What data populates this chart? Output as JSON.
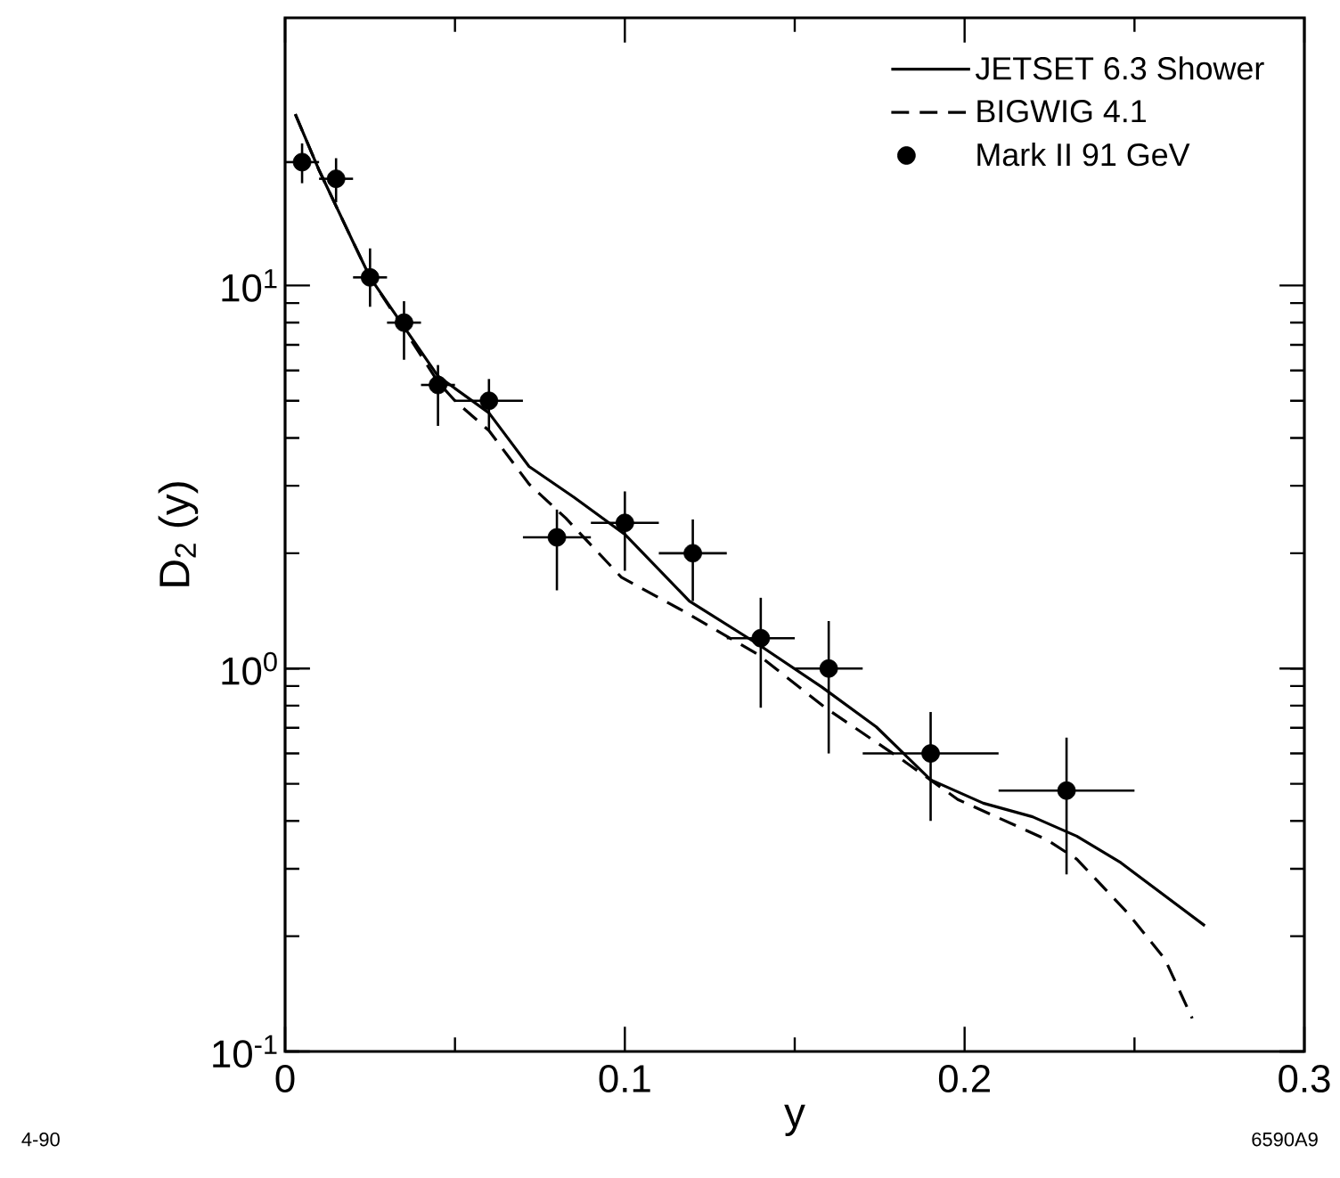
{
  "chart_data": {
    "type": "line",
    "xlabel": "y",
    "ylabel": "D$_{2}$ (y)",
    "log": "y",
    "xlim": [
      0,
      0.3
    ],
    "ylim": [
      0.1,
      50
    ],
    "xticks": [
      0,
      0.1,
      0.2,
      0.3
    ],
    "yticks": [
      {
        "value": 0.1,
        "label": "10$^{-1}$"
      },
      {
        "value": 1,
        "label": "10$^{0}$"
      },
      {
        "value": 10,
        "label": "10$^{1}$"
      }
    ],
    "grid": false,
    "legend": "top right",
    "annotations": [
      "4-90",
      "6590A9"
    ],
    "series": [
      {
        "name": "JETSET 6.3 Shower",
        "color": "#000000",
        "line_style": "solid",
        "marker": "none",
        "x": [
          0.003,
          0.01,
          0.02,
          0.025,
          0.035,
          0.045,
          0.06,
          0.0718,
          0.085,
          0.1,
          0.119,
          0.139,
          0.158,
          0.174,
          0.19,
          0.2055,
          0.22,
          0.233,
          0.246,
          0.2707
        ],
        "values": [
          28,
          20,
          13,
          10.5,
          7.8,
          5.8,
          4.65,
          3.37,
          2.8,
          2.24,
          1.5,
          1.16,
          0.894,
          0.704,
          0.512,
          0.445,
          0.41,
          0.365,
          0.311,
          0.213
        ]
      },
      {
        "name": "BIGWIG 4.1",
        "color": "#000000",
        "line_style": "dashed",
        "marker": "none",
        "x": [
          0.003,
          0.01,
          0.02,
          0.025,
          0.035,
          0.045,
          0.05,
          0.06,
          0.0718,
          0.0826,
          0.099,
          0.1174,
          0.139,
          0.159,
          0.1817,
          0.198,
          0.224,
          0.233,
          0.248,
          0.259,
          0.267
        ],
        "values": [
          28,
          20,
          13,
          10.5,
          7.7,
          5.6,
          5.0,
          4.18,
          3.03,
          2.47,
          1.73,
          1.41,
          1.09,
          0.79,
          0.577,
          0.455,
          0.358,
          0.318,
          0.23,
          0.174,
          0.122
        ]
      },
      {
        "name": "Mark II 91 GeV",
        "type": "scatter",
        "color": "#000000",
        "marker": "circle",
        "x": [
          0.005,
          0.015,
          0.025,
          0.035,
          0.045,
          0.06,
          0.08,
          0.1,
          0.12,
          0.14,
          0.16,
          0.19,
          0.23
        ],
        "values": [
          21,
          19,
          10.5,
          8,
          5.5,
          5,
          2.2,
          2.4,
          2.0,
          1.2,
          1.0,
          0.6,
          0.48
        ],
        "errors": [
          [
            18.5,
            23.5
          ],
          [
            16.5,
            21.5
          ],
          [
            8.8,
            12.5
          ],
          [
            6.4,
            9.1
          ],
          [
            4.3,
            6.2
          ],
          [
            4.2,
            5.7
          ],
          [
            1.6,
            2.6
          ],
          [
            1.8,
            2.9
          ],
          [
            1.5,
            2.45
          ],
          [
            0.79,
            1.53
          ],
          [
            0.6,
            1.33
          ],
          [
            0.4,
            0.77
          ],
          [
            0.29,
            0.66
          ]
        ],
        "xerrors": [
          0.005,
          0.005,
          0.005,
          0.005,
          0.005,
          0.01,
          0.01,
          0.01,
          0.01,
          0.01,
          0.01,
          0.02,
          0.02
        ]
      }
    ]
  }
}
